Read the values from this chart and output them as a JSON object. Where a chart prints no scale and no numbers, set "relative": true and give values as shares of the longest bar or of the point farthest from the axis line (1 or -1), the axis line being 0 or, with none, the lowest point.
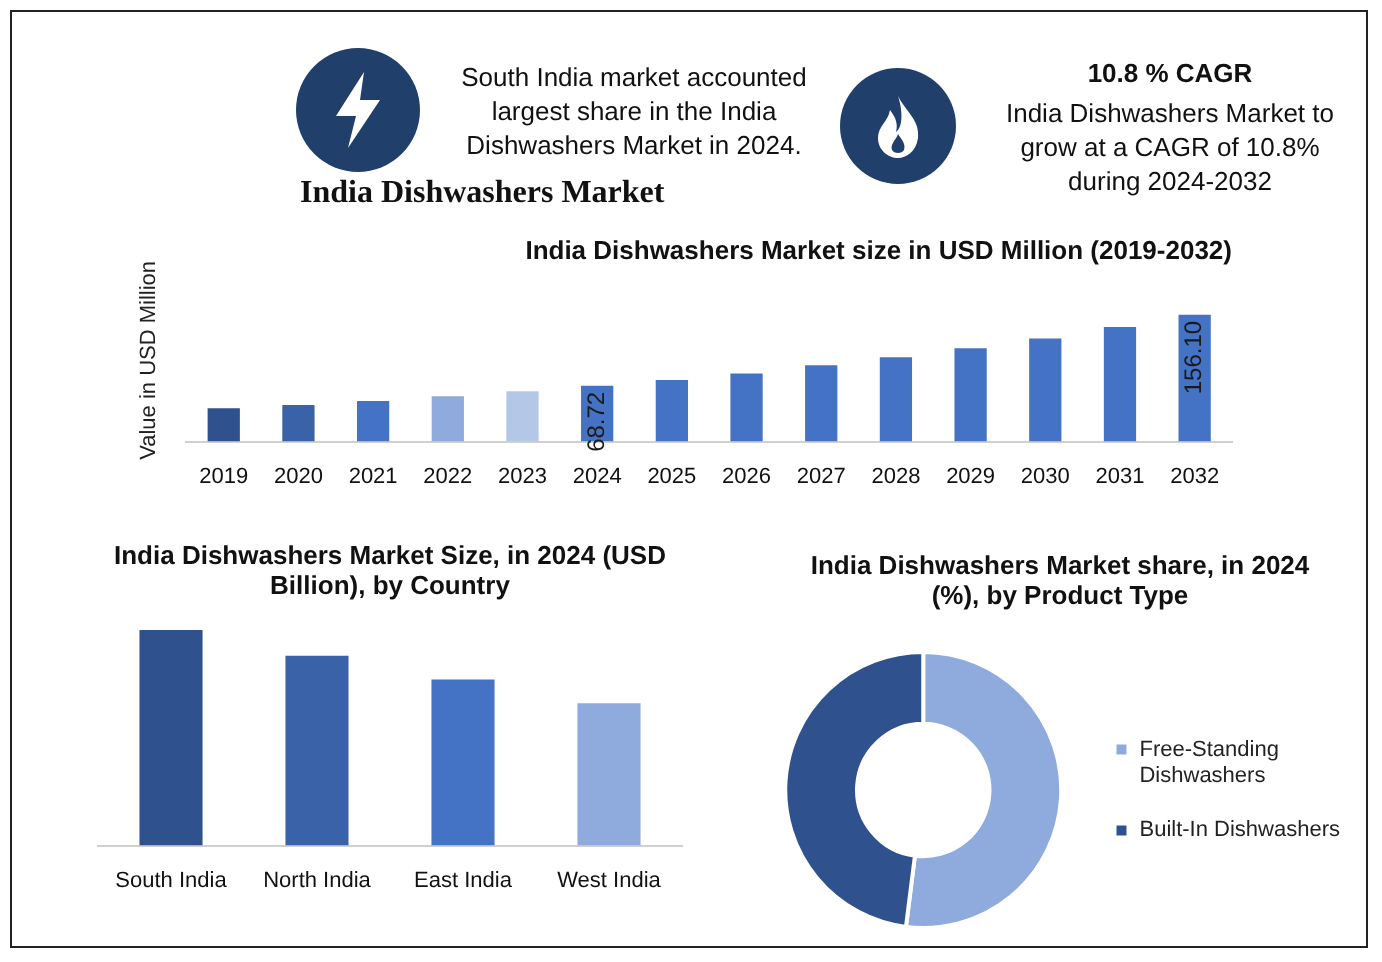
{
  "chart_data": [
    {
      "type": "other",
      "title": "India Dishwashers Market",
      "annotations": [
        "South India market accounted largest share in the India Dishwashers Market in 2024.",
        "10.8 % CAGR",
        "India Dishwashers Market to grow at a CAGR of 10.8% during 2024-2032"
      ]
    },
    {
      "type": "bar",
      "title": "India Dishwashers Market size in USD Million (2019-2032)",
      "ylabel": "Value in USD Million",
      "categories": [
        "2019",
        "2020",
        "2021",
        "2022",
        "2023",
        "2024",
        "2025",
        "2026",
        "2027",
        "2028",
        "2029",
        "2030",
        "2031",
        "2032"
      ],
      "values": [
        41,
        45,
        50,
        56,
        62,
        68.72,
        76,
        84,
        94,
        104,
        115,
        127,
        141,
        156.1
      ],
      "colors": [
        "#2f528f",
        "#3a62a8",
        "#4472c4",
        "#8faadc",
        "#b4c7e7",
        "#4472c4",
        "#4472c4",
        "#4472c4",
        "#4472c4",
        "#4472c4",
        "#4472c4",
        "#4472c4",
        "#4472c4",
        "#4472c4"
      ],
      "value_labels": [
        null,
        null,
        null,
        null,
        null,
        "68.72",
        null,
        null,
        null,
        null,
        null,
        null,
        null,
        "156.10"
      ],
      "tick_labels": "x",
      "grid": false,
      "legend": false
    },
    {
      "type": "bar",
      "title": "India Dishwashers Market Size, in 2024 (USD Billion), by Country",
      "categories": [
        "South India",
        "North India",
        "East India",
        "West India"
      ],
      "values": [
        1,
        0.88,
        0.77,
        0.66
      ],
      "colors": [
        "#2f528f",
        "#3a62a8",
        "#4472c4",
        "#8faadc"
      ],
      "relative": true,
      "grid": false,
      "legend": false
    },
    {
      "type": "donut",
      "title": "India Dishwashers Market share, in 2024 (%), by Product Type",
      "categories": [
        "Free-Standing Dishwashers",
        "Built-In Dishwashers"
      ],
      "values": [
        52,
        48
      ],
      "colors": [
        "#8faadc",
        "#2f528f"
      ],
      "legend": "right"
    }
  ]
}
